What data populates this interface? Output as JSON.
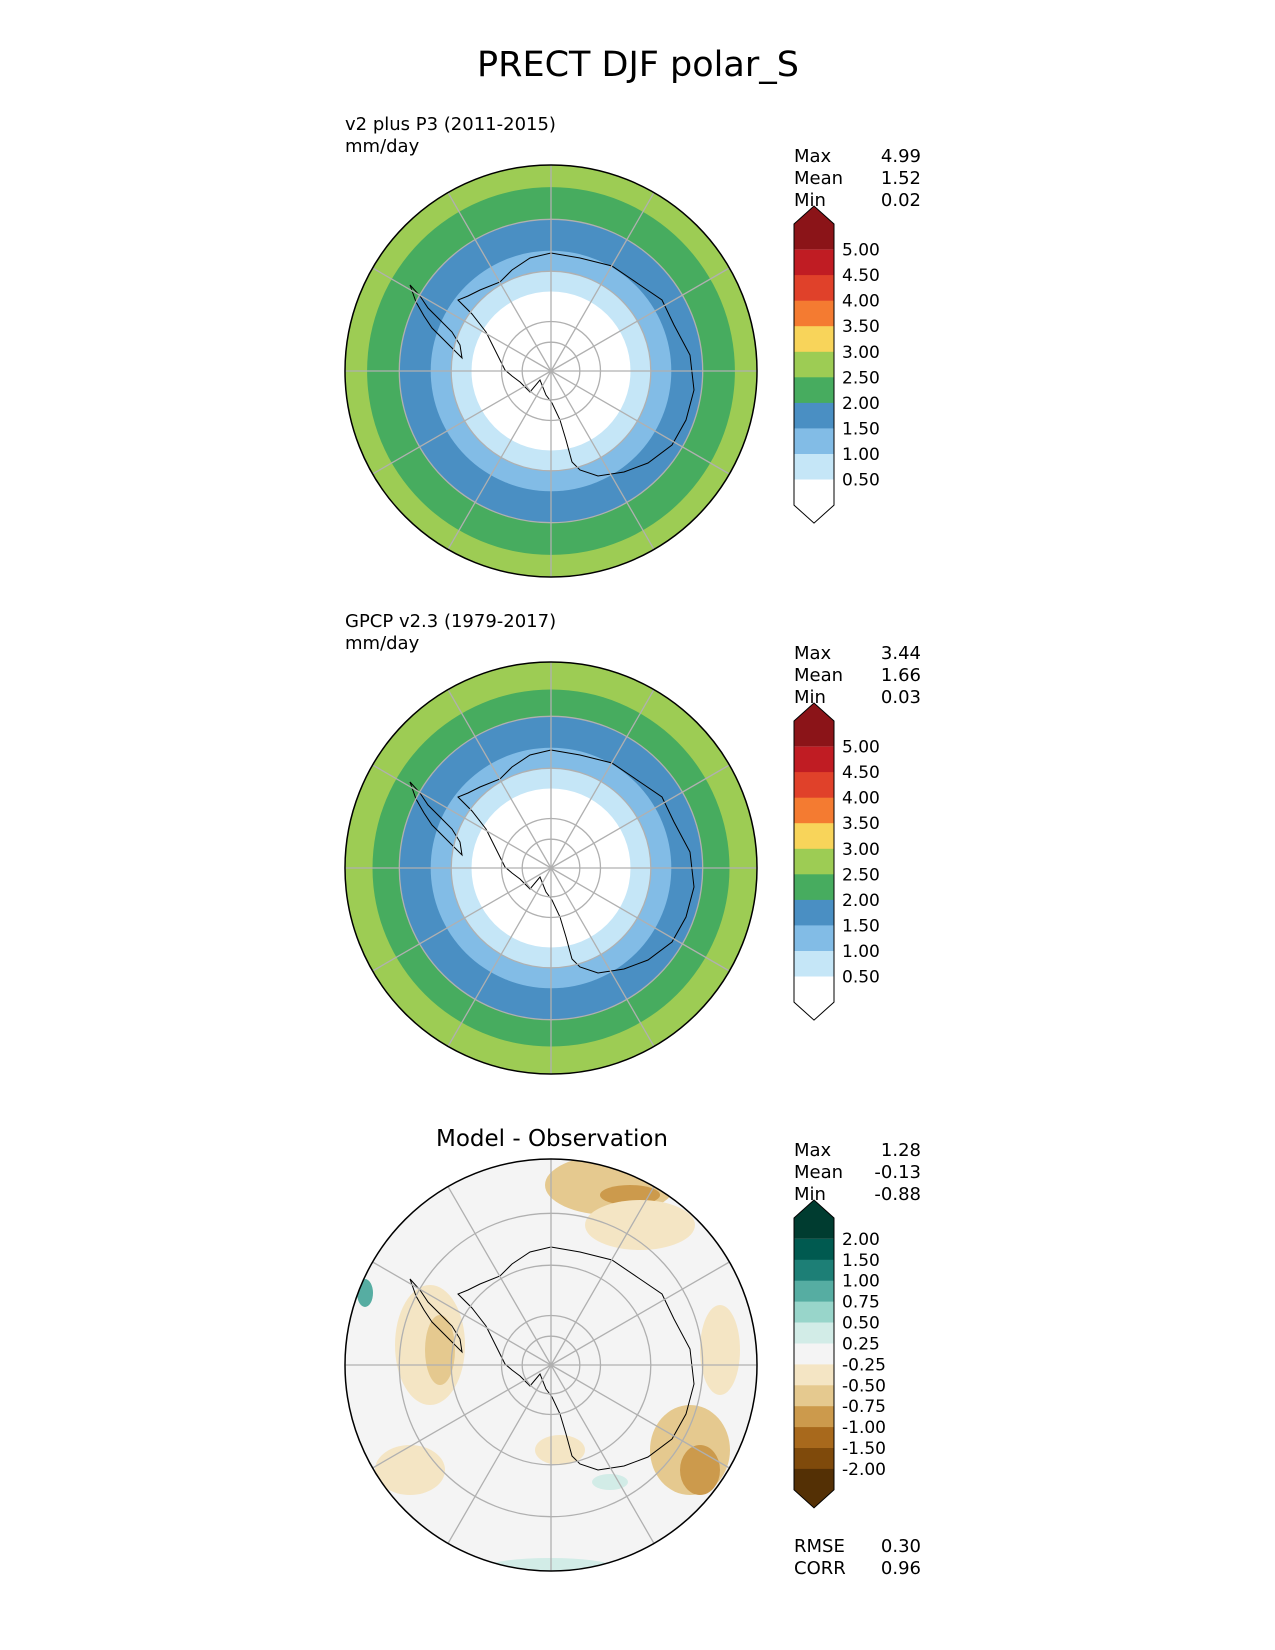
{
  "figure": {
    "title": "PRECT DJF polar_S"
  },
  "chart_data": [
    {
      "type": "heatmap",
      "projection": "south-polar-stereographic",
      "title": "v2 plus P3 (2011-2015)",
      "units": "mm/day",
      "stats": [
        {
          "label": "Max",
          "value": "4.99"
        },
        {
          "label": "Mean",
          "value": "1.52"
        },
        {
          "label": "Min",
          "value": "0.02"
        }
      ],
      "colorbar": {
        "ticks": [
          "0.50",
          "1.00",
          "1.50",
          "2.00",
          "2.50",
          "3.00",
          "3.50",
          "4.00",
          "4.50",
          "5.00"
        ],
        "colors": [
          "#ffffff",
          "#c5e6f7",
          "#82bce6",
          "#4a8fc3",
          "#47ac5f",
          "#9dcc54",
          "#f8d45a",
          "#f47b31",
          "#e0412a",
          "#c01c23",
          "#8b1418"
        ],
        "extend": "both"
      },
      "bands_by_latitude": [
        {
          "lat_from": -90,
          "lat_to": -74,
          "level": 0
        },
        {
          "lat_from": -74,
          "lat_to": -70,
          "level": 1
        },
        {
          "lat_from": -70,
          "lat_to": -66,
          "level": 2
        },
        {
          "lat_from": -66,
          "lat_to": -60,
          "level": 3
        },
        {
          "lat_from": -60,
          "lat_to": -54,
          "level": 4
        },
        {
          "lat_from": -54,
          "lat_to": -50,
          "level": 5
        }
      ]
    },
    {
      "type": "heatmap",
      "projection": "south-polar-stereographic",
      "title": "GPCP v2.3 (1979-2017)",
      "units": "mm/day",
      "stats": [
        {
          "label": "Max",
          "value": "3.44"
        },
        {
          "label": "Mean",
          "value": "1.66"
        },
        {
          "label": "Min",
          "value": "0.03"
        }
      ],
      "colorbar": {
        "ticks": [
          "0.50",
          "1.00",
          "1.50",
          "2.00",
          "2.50",
          "3.00",
          "3.50",
          "4.00",
          "4.50",
          "5.00"
        ],
        "colors": [
          "#ffffff",
          "#c5e6f7",
          "#82bce6",
          "#4a8fc3",
          "#47ac5f",
          "#9dcc54",
          "#f8d45a",
          "#f47b31",
          "#e0412a",
          "#c01c23",
          "#8b1418"
        ],
        "extend": "both"
      },
      "bands_by_latitude": [
        {
          "lat_from": -90,
          "lat_to": -74,
          "level": 0
        },
        {
          "lat_from": -74,
          "lat_to": -70,
          "level": 1
        },
        {
          "lat_from": -70,
          "lat_to": -66,
          "level": 2
        },
        {
          "lat_from": -66,
          "lat_to": -60,
          "level": 3
        },
        {
          "lat_from": -60,
          "lat_to": -55,
          "level": 4
        },
        {
          "lat_from": -55,
          "lat_to": -50,
          "level": 5
        }
      ]
    },
    {
      "type": "heatmap",
      "projection": "south-polar-stereographic",
      "title": "Model - Observation",
      "units": "",
      "stats": [
        {
          "label": "Max",
          "value": "1.28"
        },
        {
          "label": "Mean",
          "value": "-0.13"
        },
        {
          "label": "Min",
          "value": "-0.88"
        }
      ],
      "metrics": [
        {
          "label": "RMSE",
          "value": "0.30"
        },
        {
          "label": "CORR",
          "value": "0.96"
        }
      ],
      "colorbar": {
        "ticks": [
          "-2.00",
          "-1.50",
          "-1.00",
          "-0.75",
          "-0.50",
          "-0.25",
          "0.25",
          "0.50",
          "0.75",
          "1.00",
          "1.50",
          "2.00"
        ],
        "colors": [
          "#543005",
          "#7f4a0b",
          "#a8691c",
          "#cc9a4c",
          "#e5c98f",
          "#f4e5c4",
          "#f4f4f4",
          "#d2ece7",
          "#98d5ca",
          "#56ada2",
          "#1d7f76",
          "#005a50",
          "#003c30"
        ],
        "extend": "both"
      },
      "bands_by_latitude": [
        {
          "lat_from": -90,
          "lat_to": -50,
          "level": 6
        }
      ]
    }
  ]
}
